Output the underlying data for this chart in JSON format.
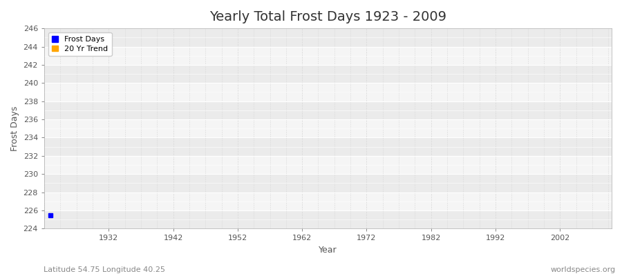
{
  "title": "Yearly Total Frost Days 1923 - 2009",
  "xlabel": "Year",
  "ylabel": "Frost Days",
  "xlim": [
    1922,
    2010
  ],
  "ylim": [
    224,
    246
  ],
  "yticks": [
    224,
    226,
    228,
    230,
    232,
    234,
    236,
    238,
    240,
    242,
    244,
    246
  ],
  "xticks": [
    1932,
    1942,
    1952,
    1962,
    1972,
    1982,
    1992,
    2002
  ],
  "data_x": [
    1923
  ],
  "data_y": [
    225.5
  ],
  "frost_color": "#0000ff",
  "trend_color": "#ffa500",
  "bg_color": "#ffffff",
  "plot_bg_color": "#f5f5f5",
  "stripe_color": "#ebebeb",
  "grid_color": "#d8d8d8",
  "footer_left": "Latitude 54.75 Longitude 40.25",
  "footer_right": "worldspecies.org",
  "title_fontsize": 14,
  "label_fontsize": 9,
  "tick_fontsize": 8,
  "footer_fontsize": 8,
  "legend_fontsize": 8
}
